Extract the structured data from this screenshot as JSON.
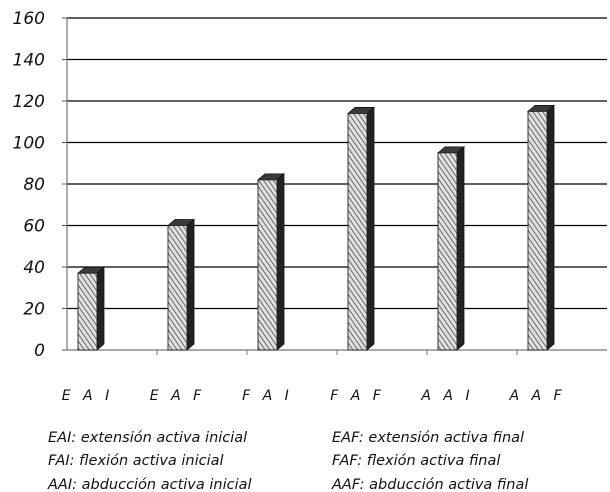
{
  "chart_data": {
    "type": "bar",
    "categories": [
      "EAI",
      "EAF",
      "FAI",
      "FAF",
      "AAI",
      "AAF"
    ],
    "category_display": [
      "E A I",
      "E A F",
      "F A I",
      "F A F",
      "A A I",
      "A A F"
    ],
    "values": [
      37,
      60,
      82,
      114,
      95,
      115
    ],
    "ylim": [
      0,
      160
    ],
    "yticks": [
      "0",
      "20",
      "40",
      "60",
      "80",
      "100",
      "120",
      "140",
      "160"
    ],
    "ytick_values": [
      0,
      20,
      40,
      60,
      80,
      100,
      120,
      140,
      160
    ],
    "grid": true,
    "bar_style": "3d-hatched",
    "colors": {
      "grid": "#000000",
      "bar_face": "#d9d9d9",
      "bar_hatch": "#555555",
      "bar_side": "#222222",
      "bar_top": "#3a3a3a"
    },
    "legend": [
      [
        "EAI: extensión activa inicial",
        "EAF: extensión activa final"
      ],
      [
        "FAI: flexión activa inicial",
        "FAF: flexión activa final"
      ],
      [
        "AAI: abducción activa inicial",
        "AAF: abducción activa final"
      ]
    ]
  }
}
